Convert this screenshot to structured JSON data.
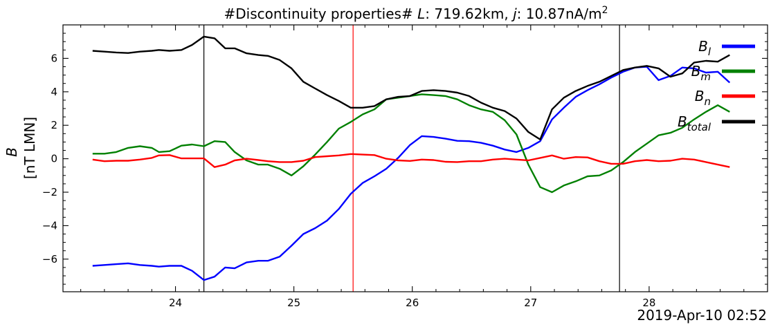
{
  "chart_data": {
    "type": "line",
    "title": "#Discontinuity properties# L: 719.62km, j: 10.87nA/m²",
    "title_parts": {
      "prefix": "#Discontinuity properties# ",
      "L_symbol": "L",
      "L_value": ": 719.62km, ",
      "j_symbol": "j",
      "j_value": ": 10.87nA/m",
      "j_exp": "2"
    },
    "ylabel": "B",
    "ylabel_unit": "[nT LMN]",
    "xlabel": "2019-Apr-10 02:52",
    "xlim": [
      23.05,
      29.0
    ],
    "ylim": [
      -7.95,
      8.0
    ],
    "xticks": [
      24,
      25,
      26,
      27,
      28
    ],
    "xtick_labels": [
      "24",
      "25",
      "26",
      "27",
      "28"
    ],
    "yticks": [
      -6,
      -4,
      -2,
      0,
      2,
      4,
      6
    ],
    "ytick_labels": [
      "−6",
      "−4",
      "−2",
      "0",
      "2",
      "4",
      "6"
    ],
    "vlines": [
      {
        "x": 24.24,
        "color": "#000000"
      },
      {
        "x": 25.5,
        "color": "#ff0000"
      },
      {
        "x": 27.75,
        "color": "#000000"
      }
    ],
    "x": [
      23.3,
      23.4,
      23.5,
      23.6,
      23.7,
      23.8,
      23.86,
      23.95,
      24.05,
      24.14,
      24.24,
      24.33,
      24.42,
      24.5,
      24.6,
      24.7,
      24.78,
      24.88,
      24.98,
      25.08,
      25.18,
      25.28,
      25.38,
      25.48,
      25.58,
      25.68,
      25.78,
      25.88,
      25.98,
      26.08,
      26.18,
      26.28,
      26.38,
      26.48,
      26.58,
      26.68,
      26.78,
      26.88,
      26.98,
      27.08,
      27.18,
      27.28,
      27.38,
      27.48,
      27.58,
      27.68,
      27.78,
      27.88,
      27.98,
      28.08,
      28.18,
      28.28,
      28.38,
      28.48,
      28.58,
      28.68
    ],
    "series": [
      {
        "name": "B_l",
        "label_main": "B",
        "label_sub": "l",
        "color": "#0000ff",
        "values": [
          -6.4,
          -6.35,
          -6.3,
          -6.25,
          -6.35,
          -6.4,
          -6.45,
          -6.4,
          -6.4,
          -6.7,
          -7.25,
          -7.05,
          -6.5,
          -6.55,
          -6.2,
          -6.1,
          -6.1,
          -5.85,
          -5.2,
          -4.5,
          -4.15,
          -3.7,
          -3.0,
          -2.1,
          -1.45,
          -1.05,
          -0.6,
          0.05,
          0.82,
          1.35,
          1.3,
          1.2,
          1.07,
          1.05,
          0.95,
          0.78,
          0.55,
          0.4,
          0.65,
          1.05,
          2.35,
          3.05,
          3.7,
          4.1,
          4.45,
          4.85,
          5.2,
          5.45,
          5.5,
          4.7,
          4.95,
          5.45,
          5.4,
          5.15,
          5.2,
          4.55
        ]
      },
      {
        "name": "B_m",
        "label_main": "B",
        "label_sub": "m",
        "color": "#008000",
        "values": [
          0.3,
          0.3,
          0.4,
          0.65,
          0.75,
          0.65,
          0.4,
          0.45,
          0.78,
          0.85,
          0.75,
          1.05,
          1.0,
          0.4,
          -0.1,
          -0.35,
          -0.35,
          -0.6,
          -1.0,
          -0.45,
          0.25,
          1.0,
          1.8,
          2.2,
          2.65,
          2.95,
          3.55,
          3.65,
          3.75,
          3.85,
          3.8,
          3.75,
          3.55,
          3.2,
          2.95,
          2.8,
          2.3,
          1.45,
          -0.35,
          -1.7,
          -2.0,
          -1.6,
          -1.35,
          -1.05,
          -1.0,
          -0.7,
          -0.2,
          0.4,
          0.9,
          1.4,
          1.55,
          1.85,
          2.35,
          2.8,
          3.2,
          2.8
        ]
      },
      {
        "name": "B_n",
        "label_main": "B",
        "label_sub": "n",
        "color": "#ff0000",
        "values": [
          -0.05,
          -0.15,
          -0.12,
          -0.12,
          -0.05,
          0.05,
          0.2,
          0.22,
          0.02,
          0.02,
          0.02,
          -0.5,
          -0.35,
          -0.1,
          0.0,
          -0.08,
          -0.15,
          -0.2,
          -0.2,
          -0.12,
          0.1,
          0.15,
          0.2,
          0.28,
          0.25,
          0.22,
          0.0,
          -0.1,
          -0.13,
          -0.05,
          -0.08,
          -0.18,
          -0.2,
          -0.15,
          -0.15,
          -0.05,
          0.0,
          -0.05,
          -0.1,
          0.05,
          0.2,
          0.0,
          0.1,
          0.08,
          -0.15,
          -0.3,
          -0.3,
          -0.15,
          -0.08,
          -0.15,
          -0.12,
          0.0,
          -0.05,
          -0.2,
          -0.35,
          -0.5
        ]
      },
      {
        "name": "B_total",
        "label_main": "B",
        "label_sub": "total",
        "color": "#000000",
        "values": [
          6.45,
          6.4,
          6.35,
          6.32,
          6.4,
          6.45,
          6.5,
          6.45,
          6.5,
          6.8,
          7.3,
          7.2,
          6.6,
          6.6,
          6.3,
          6.2,
          6.15,
          5.9,
          5.4,
          4.6,
          4.2,
          3.8,
          3.45,
          3.05,
          3.05,
          3.15,
          3.55,
          3.7,
          3.75,
          4.05,
          4.1,
          4.05,
          3.95,
          3.75,
          3.35,
          3.05,
          2.85,
          2.4,
          1.6,
          1.15,
          2.95,
          3.65,
          4.05,
          4.35,
          4.6,
          4.95,
          5.3,
          5.45,
          5.55,
          5.4,
          4.9,
          5.1,
          5.75,
          5.85,
          5.8,
          6.2
        ]
      }
    ],
    "grid": false,
    "legend": "top-right"
  }
}
